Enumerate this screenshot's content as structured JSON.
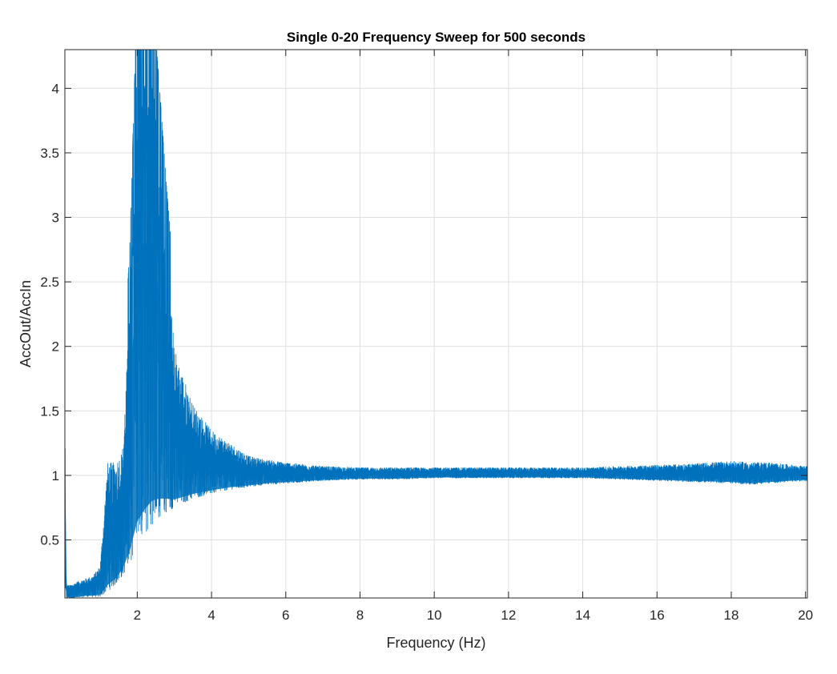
{
  "chart_data": {
    "type": "line",
    "title": "Single 0-20 Frequency Sweep for 500 seconds",
    "xlabel": "Frequency (Hz)",
    "ylabel": "AccOut/AccIn",
    "xlim": [
      0.05,
      20.05
    ],
    "ylim": [
      0.05,
      4.3
    ],
    "xticks": [
      2,
      4,
      6,
      8,
      10,
      12,
      14,
      16,
      18,
      20
    ],
    "yticks": [
      0.5,
      1,
      1.5,
      2,
      2.5,
      3,
      3.5,
      4
    ],
    "xtick_labels": [
      "2",
      "4",
      "6",
      "8",
      "10",
      "12",
      "14",
      "16",
      "18",
      "20"
    ],
    "ytick_labels": [
      "0.5",
      "1",
      "1.5",
      "2",
      "2.5",
      "3",
      "3.5",
      "4"
    ],
    "grid": true,
    "series": [
      {
        "color": "#0072bd",
        "envelope": {
          "x": [
            0.05,
            0.07,
            0.1,
            0.2,
            0.4,
            0.6,
            0.8,
            1.0,
            1.2,
            1.4,
            1.6,
            1.8,
            2.0,
            2.2,
            2.4,
            2.6,
            2.8,
            3.0,
            3.2,
            3.5,
            4.0,
            4.5,
            5.0,
            5.5,
            6.0,
            7.0,
            8.0,
            9.0,
            10.0,
            11.0,
            12.0,
            13.0,
            14.0,
            15.0,
            16.0,
            17.0,
            18.0,
            18.5,
            19.0,
            20.0
          ],
          "upper": [
            2.0,
            0.3,
            0.15,
            0.15,
            0.18,
            0.2,
            0.22,
            0.3,
            1.1,
            1.1,
            1.2,
            2.3,
            4.3,
            4.3,
            4.3,
            3.5,
            2.7,
            2.0,
            1.8,
            1.55,
            1.35,
            1.25,
            1.15,
            1.12,
            1.1,
            1.07,
            1.06,
            1.06,
            1.06,
            1.06,
            1.06,
            1.06,
            1.06,
            1.07,
            1.08,
            1.09,
            1.11,
            1.1,
            1.1,
            1.07
          ],
          "lower": [
            0.1,
            0.05,
            0.05,
            0.05,
            0.05,
            0.06,
            0.06,
            0.06,
            0.1,
            0.15,
            0.22,
            0.32,
            0.45,
            0.55,
            0.62,
            0.68,
            0.72,
            0.75,
            0.78,
            0.82,
            0.86,
            0.89,
            0.91,
            0.93,
            0.94,
            0.96,
            0.97,
            0.97,
            0.98,
            0.98,
            0.98,
            0.98,
            0.98,
            0.97,
            0.96,
            0.95,
            0.94,
            0.93,
            0.94,
            0.96
          ]
        },
        "center": {
          "x": [
            0.05,
            0.1,
            0.5,
            1.0,
            1.5,
            2.0,
            2.5,
            3.0,
            3.5,
            4.0,
            5.0,
            6.0,
            8.0,
            10.0,
            14.0,
            18.0,
            20.0
          ],
          "y": [
            1.0,
            0.08,
            0.08,
            0.1,
            0.35,
            0.9,
            1.1,
            1.1,
            1.05,
            1.03,
            1.02,
            1.01,
            1.01,
            1.01,
            1.02,
            1.02,
            1.02
          ]
        }
      }
    ]
  }
}
